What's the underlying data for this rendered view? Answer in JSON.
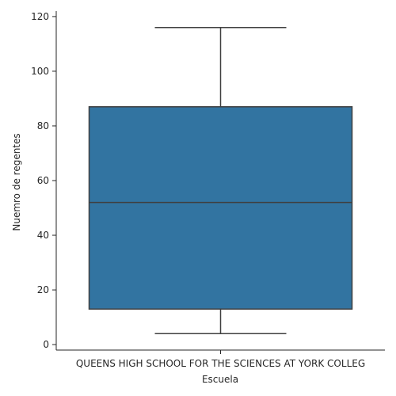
{
  "chart_data": {
    "type": "box",
    "categories": [
      "QUEENS HIGH SCHOOL FOR THE SCIENCES AT YORK COLLEG"
    ],
    "boxes": [
      {
        "category": "QUEENS HIGH SCHOOL FOR THE SCIENCES AT YORK COLLEG",
        "whisker_low": 4,
        "q1": 13,
        "median": 52,
        "q3": 87,
        "whisker_high": 116
      }
    ],
    "xlabel": "Escuela",
    "ylabel": "Nuemro de regentes",
    "ylim": [
      -2,
      122
    ],
    "yticks": [
      0,
      20,
      40,
      60,
      80,
      100,
      120
    ],
    "grid": false,
    "colors": {
      "box_fill": "#3274a1",
      "line": "#3f3f3f",
      "axis": "#262626"
    }
  }
}
